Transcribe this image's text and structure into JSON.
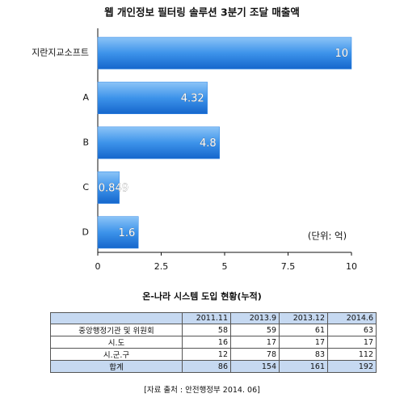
{
  "chart_data": {
    "type": "bar",
    "orientation": "horizontal",
    "title": "웹 개인정보 필터링 솔루션 3분기 조달 매출액",
    "categories": [
      "지란지교소프트",
      "A",
      "B",
      "C",
      "D"
    ],
    "values": [
      10,
      4.32,
      4.8,
      0.849,
      1.6
    ],
    "color": "#2f86e6",
    "xlim": [
      0,
      10
    ],
    "xticks": [
      0,
      2.5,
      5,
      7.5,
      10
    ],
    "annotation": "(단위: 억)"
  },
  "table": {
    "title": "온-나라 시스템 도입 현황(누적)",
    "columns": [
      "2011.11",
      "2013.9",
      "2013.12",
      "2014.6"
    ],
    "rows": [
      [
        "중앙행정기관 및 위원회",
        58,
        59,
        61,
        63
      ],
      [
        "시.도",
        16,
        17,
        17,
        17
      ],
      [
        "시.군.구",
        12,
        78,
        83,
        112
      ],
      [
        "합계",
        86,
        154,
        161,
        192
      ]
    ],
    "source": "[자료 출처 : 안전행정부 2014. 06]"
  }
}
